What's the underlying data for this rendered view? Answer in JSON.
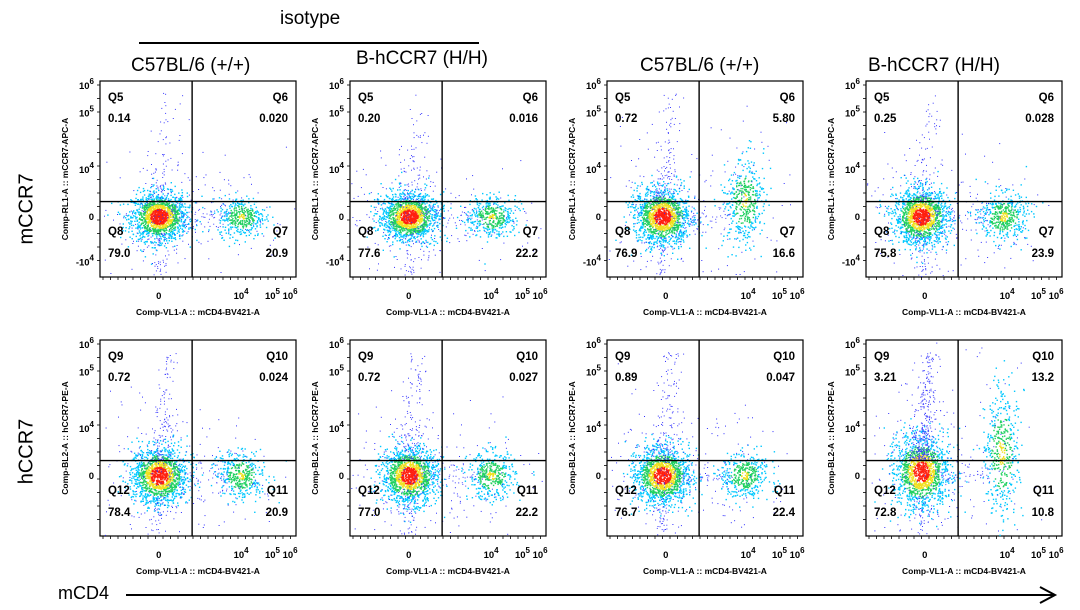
{
  "header": {
    "isotype_label": "isotype",
    "columns": [
      "C57BL/6 (+/+)",
      "B-hCCR7 (H/H)",
      "C57BL/6 (+/+)",
      "B-hCCR7 (H/H)"
    ]
  },
  "rows": [
    "mCCR7",
    "hCCR7"
  ],
  "bottom_axis_label": "mCD4",
  "chart_data": [
    {
      "type": "scatter",
      "subtype": "flow-cytometry-density-dot-plot",
      "row": "mCCR7",
      "column": "C57BL/6 (+/+)",
      "group": "isotype",
      "xlabel": "Comp-VL1-A :: mCD4-BV421-A",
      "ylabel": "Comp-RL1-A :: mCCR7-APC-A",
      "x_ticks": [
        "0",
        "10^4",
        "10^5",
        "10^6"
      ],
      "y_ticks": [
        "-10^4",
        "0",
        "10^4",
        "10^5",
        "10^6"
      ],
      "quadrants": [
        {
          "name": "Q5",
          "position": "top-left",
          "percent": "0.14"
        },
        {
          "name": "Q6",
          "position": "top-right",
          "percent": "0.020"
        },
        {
          "name": "Q7",
          "position": "bottom-right",
          "percent": "20.9"
        },
        {
          "name": "Q8",
          "position": "bottom-left",
          "percent": "79.0"
        }
      ],
      "populations": [
        {
          "x": 0.3,
          "y": 0.0,
          "sx": 0.07,
          "sy": 0.06,
          "weight": 79.0
        },
        {
          "x": 0.72,
          "y": 0.0,
          "sx": 0.06,
          "sy": 0.05,
          "weight": 20.9
        }
      ],
      "tail_up": 0.14
    },
    {
      "type": "scatter",
      "subtype": "flow-cytometry-density-dot-plot",
      "row": "mCCR7",
      "column": "B-hCCR7 (H/H)",
      "group": "isotype",
      "xlabel": "Comp-VL1-A :: mCD4-BV421-A",
      "ylabel": "Comp-RL1-A :: mCCR7-APC-A",
      "x_ticks": [
        "0",
        "10^4",
        "10^5",
        "10^6"
      ],
      "y_ticks": [
        "-10^4",
        "0",
        "10^4",
        "10^5",
        "10^6"
      ],
      "quadrants": [
        {
          "name": "Q5",
          "position": "top-left",
          "percent": "0.20"
        },
        {
          "name": "Q6",
          "position": "top-right",
          "percent": "0.016"
        },
        {
          "name": "Q7",
          "position": "bottom-right",
          "percent": "22.2"
        },
        {
          "name": "Q8",
          "position": "bottom-left",
          "percent": "77.6"
        }
      ],
      "populations": [
        {
          "x": 0.3,
          "y": 0.0,
          "sx": 0.07,
          "sy": 0.06,
          "weight": 77.6
        },
        {
          "x": 0.72,
          "y": 0.0,
          "sx": 0.06,
          "sy": 0.05,
          "weight": 22.2
        }
      ],
      "tail_up": 0.2
    },
    {
      "type": "scatter",
      "subtype": "flow-cytometry-density-dot-plot",
      "row": "mCCR7",
      "column": "C57BL/6 (+/+)",
      "group": "stained",
      "xlabel": "Comp-VL1-A :: mCD4-BV421-A",
      "ylabel": "Comp-RL1-A :: mCCR7-APC-A",
      "x_ticks": [
        "0",
        "10^4",
        "10^5",
        "10^6"
      ],
      "y_ticks": [
        "-10^4",
        "0",
        "10^4",
        "10^5",
        "10^6"
      ],
      "quadrants": [
        {
          "name": "Q5",
          "position": "top-left",
          "percent": "0.72"
        },
        {
          "name": "Q6",
          "position": "top-right",
          "percent": "5.80"
        },
        {
          "name": "Q7",
          "position": "bottom-right",
          "percent": "16.6"
        },
        {
          "name": "Q8",
          "position": "bottom-left",
          "percent": "76.9"
        }
      ],
      "populations": [
        {
          "x": 0.28,
          "y": 0.0,
          "sx": 0.07,
          "sy": 0.07,
          "weight": 76.9
        },
        {
          "x": 0.7,
          "y": 0.08,
          "sx": 0.05,
          "sy": 0.11,
          "weight": 22.4
        }
      ],
      "tail_up": 0.72
    },
    {
      "type": "scatter",
      "subtype": "flow-cytometry-density-dot-plot",
      "row": "mCCR7",
      "column": "B-hCCR7 (H/H)",
      "group": "stained",
      "xlabel": "Comp-VL1-A :: mCD4-BV421-A",
      "ylabel": "Comp-RL1-A :: mCCR7-APC-A",
      "x_ticks": [
        "0",
        "10^4",
        "10^5",
        "10^6"
      ],
      "y_ticks": [
        "-10^4",
        "0",
        "10^4",
        "10^5",
        "10^6"
      ],
      "quadrants": [
        {
          "name": "Q5",
          "position": "top-left",
          "percent": "0.25"
        },
        {
          "name": "Q6",
          "position": "top-right",
          "percent": "0.028"
        },
        {
          "name": "Q7",
          "position": "bottom-right",
          "percent": "23.9"
        },
        {
          "name": "Q8",
          "position": "bottom-left",
          "percent": "75.8"
        }
      ],
      "populations": [
        {
          "x": 0.28,
          "y": 0.0,
          "sx": 0.07,
          "sy": 0.07,
          "weight": 75.8
        },
        {
          "x": 0.7,
          "y": 0.0,
          "sx": 0.06,
          "sy": 0.06,
          "weight": 23.9
        }
      ],
      "tail_up": 0.25
    },
    {
      "type": "scatter",
      "subtype": "flow-cytometry-density-dot-plot",
      "row": "hCCR7",
      "column": "C57BL/6 (+/+)",
      "group": "isotype",
      "xlabel": "Comp-VL1-A :: mCD4-BV421-A",
      "ylabel": "Comp-BL2-A :: hCCR7-PE-A",
      "x_ticks": [
        "0",
        "10^4",
        "10^5",
        "10^6"
      ],
      "y_ticks": [
        "0",
        "10^4",
        "10^5",
        "10^6"
      ],
      "quadrants": [
        {
          "name": "Q9",
          "position": "top-left",
          "percent": "0.72"
        },
        {
          "name": "Q10",
          "position": "top-right",
          "percent": "0.024"
        },
        {
          "name": "Q11",
          "position": "bottom-right",
          "percent": "20.9"
        },
        {
          "name": "Q12",
          "position": "bottom-left",
          "percent": "78.4"
        }
      ],
      "populations": [
        {
          "x": 0.3,
          "y": 0.0,
          "sx": 0.07,
          "sy": 0.07,
          "weight": 78.4
        },
        {
          "x": 0.72,
          "y": 0.0,
          "sx": 0.06,
          "sy": 0.06,
          "weight": 20.9
        }
      ],
      "tail_up": 0.72
    },
    {
      "type": "scatter",
      "subtype": "flow-cytometry-density-dot-plot",
      "row": "hCCR7",
      "column": "B-hCCR7 (H/H)",
      "group": "isotype",
      "xlabel": "Comp-VL1-A :: mCD4-BV421-A",
      "ylabel": "Comp-BL2-A :: hCCR7-PE-A",
      "x_ticks": [
        "0",
        "10^4",
        "10^5",
        "10^6"
      ],
      "y_ticks": [
        "0",
        "10^4",
        "10^5",
        "10^6"
      ],
      "quadrants": [
        {
          "name": "Q9",
          "position": "top-left",
          "percent": "0.72"
        },
        {
          "name": "Q10",
          "position": "top-right",
          "percent": "0.027"
        },
        {
          "name": "Q11",
          "position": "bottom-right",
          "percent": "22.2"
        },
        {
          "name": "Q12",
          "position": "bottom-left",
          "percent": "77.0"
        }
      ],
      "populations": [
        {
          "x": 0.3,
          "y": 0.0,
          "sx": 0.07,
          "sy": 0.07,
          "weight": 77.0
        },
        {
          "x": 0.72,
          "y": 0.0,
          "sx": 0.06,
          "sy": 0.06,
          "weight": 22.2
        }
      ],
      "tail_up": 0.72
    },
    {
      "type": "scatter",
      "subtype": "flow-cytometry-density-dot-plot",
      "row": "hCCR7",
      "column": "C57BL/6 (+/+)",
      "group": "stained",
      "xlabel": "Comp-VL1-A :: mCD4-BV421-A",
      "ylabel": "Comp-BL2-A :: hCCR7-PE-A",
      "x_ticks": [
        "0",
        "10^4",
        "10^5",
        "10^6"
      ],
      "y_ticks": [
        "0",
        "10^4",
        "10^5",
        "10^6"
      ],
      "quadrants": [
        {
          "name": "Q9",
          "position": "top-left",
          "percent": "0.89"
        },
        {
          "name": "Q10",
          "position": "top-right",
          "percent": "0.047"
        },
        {
          "name": "Q11",
          "position": "bottom-right",
          "percent": "22.4"
        },
        {
          "name": "Q12",
          "position": "bottom-left",
          "percent": "76.7"
        }
      ],
      "populations": [
        {
          "x": 0.28,
          "y": 0.0,
          "sx": 0.07,
          "sy": 0.07,
          "weight": 76.7
        },
        {
          "x": 0.7,
          "y": 0.0,
          "sx": 0.06,
          "sy": 0.06,
          "weight": 22.4
        }
      ],
      "tail_up": 0.89
    },
    {
      "type": "scatter",
      "subtype": "flow-cytometry-density-dot-plot",
      "row": "hCCR7",
      "column": "B-hCCR7 (H/H)",
      "group": "stained",
      "xlabel": "Comp-VL1-A :: mCD4-BV421-A",
      "ylabel": "Comp-BL2-A :: hCCR7-PE-A",
      "x_ticks": [
        "0",
        "10^4",
        "10^5",
        "10^6"
      ],
      "y_ticks": [
        "0",
        "10^4",
        "10^5",
        "10^6"
      ],
      "quadrants": [
        {
          "name": "Q9",
          "position": "top-left",
          "percent": "3.21"
        },
        {
          "name": "Q10",
          "position": "top-right",
          "percent": "13.2"
        },
        {
          "name": "Q11",
          "position": "bottom-right",
          "percent": "10.8"
        },
        {
          "name": "Q12",
          "position": "bottom-left",
          "percent": "72.8"
        }
      ],
      "populations": [
        {
          "x": 0.28,
          "y": 0.02,
          "sx": 0.07,
          "sy": 0.09,
          "weight": 72.8
        },
        {
          "x": 0.69,
          "y": 0.12,
          "sx": 0.045,
          "sy": 0.16,
          "weight": 24.0
        }
      ],
      "tail_up": 3.21
    }
  ]
}
